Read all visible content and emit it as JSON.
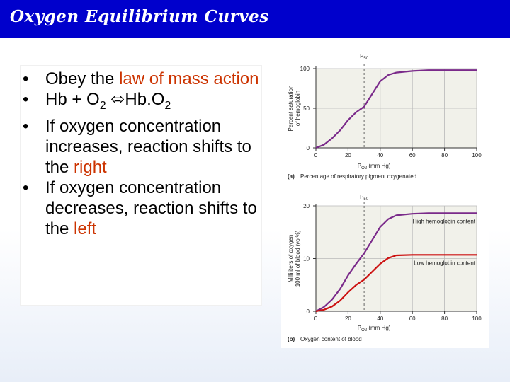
{
  "title": "Oxygen Equilibrium Curves",
  "bullets": {
    "b1": {
      "pre": "Obey the ",
      "highlight": "law of mass action",
      "post": ""
    },
    "b2": {
      "a": "Hb + O",
      "sub1": "2",
      "arrow": " ⬄",
      "b": "Hb.O",
      "sub2": "2"
    },
    "b3": {
      "pre": "If oxygen concentration increases, reaction shifts to the ",
      "highlight": "right"
    },
    "b4": {
      "pre": "If oxygen concentration decreases, reaction shifts to the ",
      "highlight": "left"
    }
  },
  "colors": {
    "title_bar": "#0000cc",
    "highlight": "#cc3300",
    "purple_curve": "#7a2a8a",
    "red_curve": "#cc1111"
  },
  "chart_data": [
    {
      "type": "line",
      "panel": "(a)",
      "caption": "Percentage of respiratory pigment oxygenated",
      "ylabel_line1": "Percent saturation",
      "ylabel_line2": "of hemoglobin",
      "xlabel_main": "P",
      "xlabel_sub": "O2",
      "xlabel_unit": " (mm Hg)",
      "p50_main": "P",
      "p50_sub": "50",
      "p50_x": 30,
      "xlim": [
        0,
        100
      ],
      "ylim": [
        0,
        100
      ],
      "xticks": [
        0,
        20,
        40,
        60,
        80,
        100
      ],
      "yticks": [
        0,
        50,
        100
      ],
      "series": [
        {
          "color": "#7a2a8a",
          "x": [
            0,
            5,
            10,
            15,
            20,
            25,
            30,
            35,
            40,
            45,
            50,
            60,
            70,
            80,
            90,
            100
          ],
          "y": [
            0,
            4,
            12,
            22,
            35,
            45,
            52,
            68,
            84,
            92,
            95,
            97,
            98,
            98,
            98,
            98
          ]
        }
      ]
    },
    {
      "type": "line",
      "panel": "(b)",
      "caption": "Oxygen content of blood",
      "ylabel_line1": "Milliliters of oxygen",
      "ylabel_line2": "100 ml of blood (vol%)",
      "xlabel_main": "P",
      "xlabel_sub": "O2",
      "xlabel_unit": " (mm Hg)",
      "p50_main": "P",
      "p50_sub": "50",
      "p50_x": 30,
      "xlim": [
        0,
        100
      ],
      "ylim": [
        0,
        20
      ],
      "xticks": [
        0,
        20,
        40,
        60,
        80,
        100
      ],
      "yticks": [
        0,
        10,
        20
      ],
      "series": [
        {
          "name": "High hemoglobin content",
          "color": "#7a2a8a",
          "x": [
            0,
            5,
            10,
            15,
            20,
            25,
            30,
            35,
            40,
            45,
            50,
            60,
            70,
            80,
            90,
            100
          ],
          "y": [
            0,
            0.8,
            2.2,
            4.2,
            6.8,
            9,
            11,
            13.5,
            16,
            17.5,
            18.2,
            18.5,
            18.6,
            18.6,
            18.6,
            18.6
          ]
        },
        {
          "name": "Low hemoglobin content",
          "color": "#cc1111",
          "x": [
            0,
            5,
            10,
            15,
            20,
            25,
            30,
            35,
            40,
            45,
            50,
            60,
            70,
            80,
            90,
            100
          ],
          "y": [
            0,
            0.3,
            0.9,
            2.0,
            3.6,
            5,
            6,
            7.5,
            9,
            10.1,
            10.6,
            10.7,
            10.7,
            10.7,
            10.7,
            10.7
          ]
        }
      ]
    }
  ]
}
